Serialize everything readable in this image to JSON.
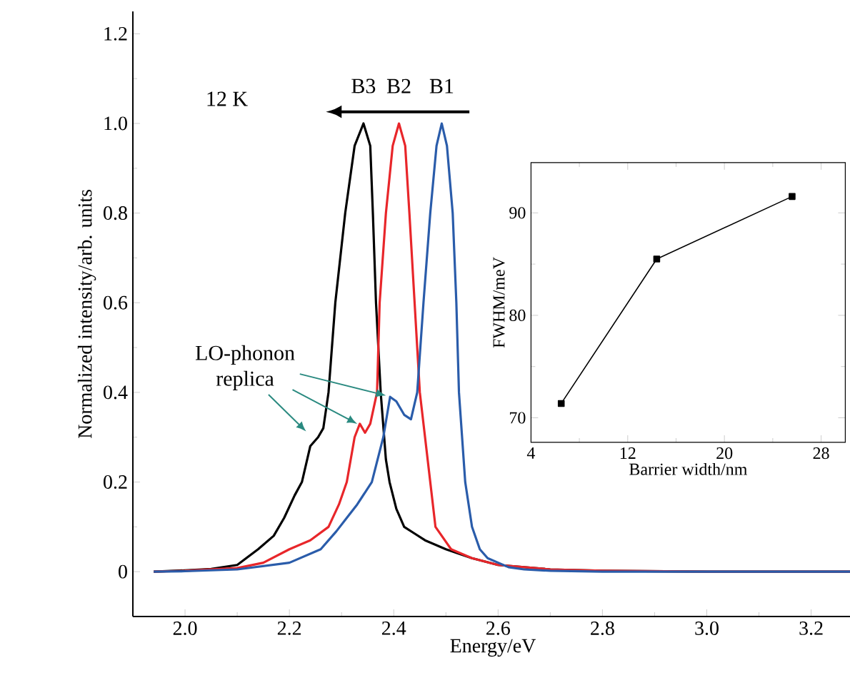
{
  "chart_data": [
    {
      "type": "line",
      "xlabel": "Energy/eV",
      "ylabel": "Normalized intensity/arb. units",
      "xlim": [
        1.9,
        3.28
      ],
      "ylim": [
        -0.1,
        1.25
      ],
      "xticks": [
        {
          "value": 2,
          "label": "2.0"
        },
        2.2,
        2.4,
        2.6,
        2.8,
        {
          "value": 3,
          "label": "3.0"
        },
        3.2
      ],
      "yticks": [
        0,
        0.2,
        0.4,
        0.6,
        0.8,
        {
          "value": 1,
          "label": "1.0"
        },
        1.2
      ],
      "legend": false,
      "grid": false,
      "marker": "none",
      "line_style": "solid",
      "annotations": [
        "12 K",
        {
          "text": "LO-phonon replica",
          "x": 2.33,
          "y": 0.33
        }
      ],
      "series": [
        {
          "name": "B3",
          "color": "#000000",
          "x": [
            1.94,
            2.0,
            2.05,
            2.1,
            2.14,
            2.17,
            2.19,
            2.21,
            2.224,
            2.24,
            2.255,
            2.265,
            2.275,
            2.288,
            2.307,
            2.325,
            2.342,
            2.355,
            2.36,
            2.366,
            2.375,
            2.385,
            2.392,
            2.405,
            2.42,
            2.44,
            2.46,
            2.5,
            2.55,
            2.6,
            2.7,
            2.8,
            3.0,
            3.28
          ],
          "values": [
            0,
            0.003,
            0.006,
            0.015,
            0.05,
            0.08,
            0.12,
            0.17,
            0.2,
            0.28,
            0.3,
            0.32,
            0.4,
            0.6,
            0.8,
            0.95,
            1.0,
            0.95,
            0.8,
            0.6,
            0.4,
            0.25,
            0.2,
            0.14,
            0.1,
            0.085,
            0.07,
            0.05,
            0.03,
            0.015,
            0.005,
            0.002,
            0,
            0
          ]
        },
        {
          "name": "B2",
          "color": "#e8262a",
          "x": [
            1.94,
            2.0,
            2.1,
            2.15,
            2.2,
            2.24,
            2.275,
            2.295,
            2.31,
            2.325,
            2.335,
            2.345,
            2.355,
            2.368,
            2.373,
            2.385,
            2.398,
            2.41,
            2.422,
            2.43,
            2.44,
            2.45,
            2.47,
            2.48,
            2.51,
            2.55,
            2.6,
            2.7,
            2.8,
            3.0,
            3.28
          ],
          "values": [
            0,
            0.002,
            0.008,
            0.02,
            0.05,
            0.07,
            0.1,
            0.15,
            0.2,
            0.3,
            0.33,
            0.31,
            0.33,
            0.4,
            0.6,
            0.8,
            0.95,
            1.0,
            0.95,
            0.8,
            0.6,
            0.4,
            0.2,
            0.1,
            0.05,
            0.03,
            0.015,
            0.005,
            0.002,
            0,
            0
          ]
        },
        {
          "name": "B1",
          "color": "#2a5caa",
          "x": [
            1.94,
            2.0,
            2.1,
            2.2,
            2.26,
            2.29,
            2.31,
            2.33,
            2.358,
            2.38,
            2.393,
            2.405,
            2.42,
            2.433,
            2.445,
            2.457,
            2.47,
            2.482,
            2.492,
            2.502,
            2.513,
            2.52,
            2.525,
            2.537,
            2.55,
            2.565,
            2.58,
            2.62,
            2.65,
            2.7,
            2.8,
            3.0,
            3.28
          ],
          "values": [
            0,
            0.001,
            0.005,
            0.02,
            0.05,
            0.09,
            0.12,
            0.15,
            0.2,
            0.3,
            0.39,
            0.38,
            0.35,
            0.34,
            0.4,
            0.6,
            0.8,
            0.95,
            1.0,
            0.95,
            0.8,
            0.6,
            0.4,
            0.2,
            0.1,
            0.05,
            0.03,
            0.01,
            0.005,
            0.002,
            0,
            0,
            0
          ]
        }
      ]
    },
    {
      "type": "line",
      "xlabel": "Barrier width/nm",
      "ylabel": "FWHM/meV",
      "xlim": [
        4,
        30
      ],
      "ylim": [
        67.6,
        94.9
      ],
      "xticks": [
        4,
        12,
        20,
        28
      ],
      "yticks": [
        70,
        80,
        90
      ],
      "legend": false,
      "grid": false,
      "marker": "square",
      "line_style": "solid",
      "series": [
        {
          "color": "#000000",
          "x": [
            6.5,
            14.4,
            25.6
          ],
          "values": [
            71.4,
            85.5,
            91.6
          ]
        }
      ]
    }
  ]
}
